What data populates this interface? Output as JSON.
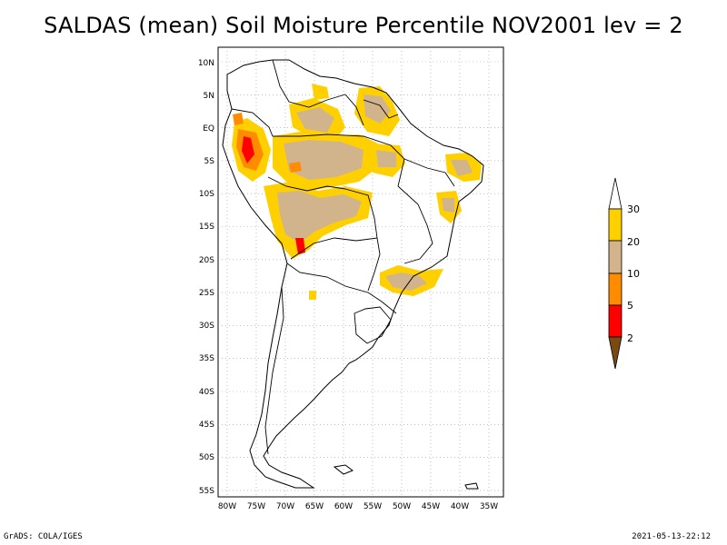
{
  "title": "SALDAS (mean) Soil Moisture Percentile NOV2001 lev = 2",
  "footer": {
    "left": "GrADS: COLA/IGES",
    "right": "2021-05-13-22:12"
  },
  "map": {
    "lat_range": [
      -56,
      12
    ],
    "lon_range": [
      -81,
      -34
    ],
    "lat_ticks": [
      "10N",
      "5N",
      "EQ",
      "5S",
      "10S",
      "15S",
      "20S",
      "25S",
      "30S",
      "35S",
      "40S",
      "45S",
      "50S",
      "55S"
    ],
    "lon_ticks": [
      "80W",
      "75W",
      "70W",
      "65W",
      "60W",
      "55W",
      "50W",
      "45W",
      "40W",
      "35W"
    ],
    "grid": "dotted"
  },
  "legend": {
    "levels": [
      "2",
      "5",
      "10",
      "20",
      "30"
    ],
    "colors": {
      "below_2": "#7a4a12",
      "2_5": "#ff0000",
      "5_10": "#ff8c00",
      "10_20": "#d2b48c",
      "20_30": "#ffd000",
      "above_30": "#ffffff"
    }
  },
  "field_colors": {
    "tan": "#d2b48c",
    "yellow": "#ffd000",
    "orange": "#ff8c00",
    "red": "#ff0000"
  }
}
